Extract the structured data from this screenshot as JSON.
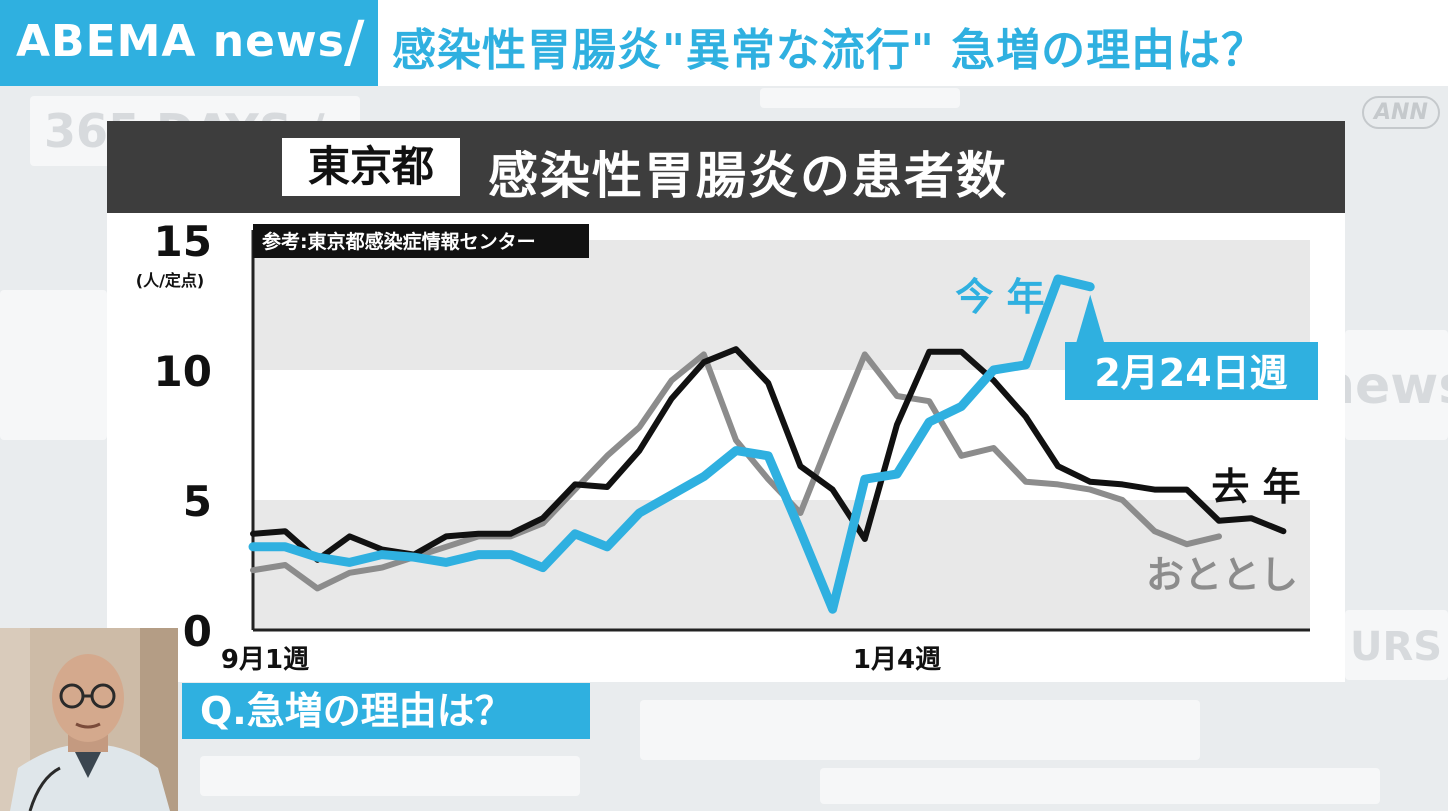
{
  "header": {
    "logo": "ABEMA news",
    "headline": "感染性胃腸炎\"異常な流行\" 急増の理由は？",
    "network_mark": "ANN"
  },
  "background": {
    "text_1": "365 DAYS /",
    "text_2": "news",
    "text_3": "URS"
  },
  "chart_panel": {
    "region_tag": "東京都",
    "title": "感染性胃腸炎の患者数",
    "source": "参考:東京都感染症情報センター"
  },
  "chart_data": {
    "type": "line",
    "ylabel": "(人/定点)",
    "ylim": [
      0,
      15
    ],
    "yticks": [
      0,
      5,
      10,
      15
    ],
    "x_tick_labels": [
      {
        "index": 0,
        "label": "9月1週"
      },
      {
        "index": 20,
        "label": "1月4週"
      }
    ],
    "series": [
      {
        "name": "おととし",
        "color": "#8c8c8c",
        "values": [
          2.3,
          2.5,
          1.6,
          2.2,
          2.4,
          2.8,
          3.2,
          3.6,
          3.6,
          4.1,
          5.4,
          6.7,
          7.8,
          9.6,
          10.6,
          7.3,
          5.8,
          4.5,
          7.6,
          10.6,
          9.0,
          8.8,
          6.7,
          7.0,
          5.7,
          5.6,
          5.4,
          5.0,
          3.8,
          3.3,
          3.6
        ]
      },
      {
        "name": "去 年",
        "color": "#111111",
        "values": [
          3.7,
          3.8,
          2.7,
          3.6,
          3.1,
          2.9,
          3.6,
          3.7,
          3.7,
          4.3,
          5.6,
          5.5,
          6.9,
          8.9,
          10.3,
          10.8,
          9.5,
          6.3,
          5.4,
          3.5,
          7.9,
          10.7,
          10.7,
          9.6,
          8.2,
          6.3,
          5.7,
          5.6,
          5.4,
          5.4,
          4.2,
          4.3,
          3.8
        ]
      },
      {
        "name": "今 年",
        "color": "#2fb0e0",
        "values": [
          3.2,
          3.2,
          2.8,
          2.6,
          2.9,
          2.8,
          2.6,
          2.9,
          2.9,
          2.4,
          3.7,
          3.2,
          4.5,
          5.2,
          5.9,
          6.9,
          6.7,
          3.8,
          0.8,
          5.8,
          6.0,
          8.0,
          8.6,
          10.0,
          10.2,
          13.5,
          13.2
        ]
      }
    ],
    "annotation": "2月24日週"
  },
  "overlay": {
    "question": "Q.急増の理由は？"
  }
}
